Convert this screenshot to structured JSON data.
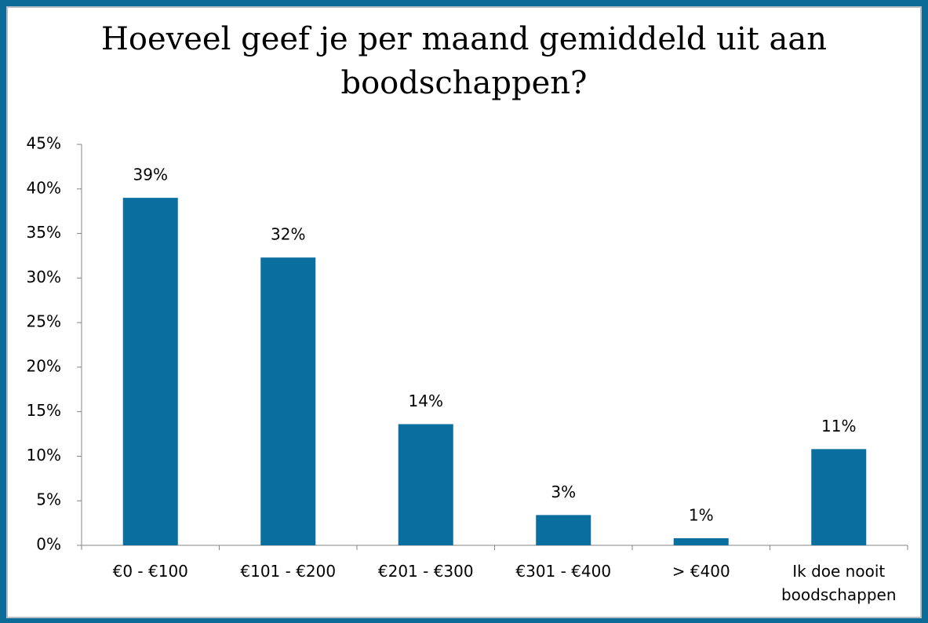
{
  "chart_data": {
    "type": "bar",
    "title": "Hoeveel geef je per maand gemiddeld uit aan boodschappen?",
    "categories": [
      "€0 - €100",
      "€101 - €200",
      "€201 - €300",
      "€301 - €400",
      "> €400",
      "Ik doe nooit boodschappen"
    ],
    "values": [
      39,
      32.3,
      13.6,
      3.4,
      0.8,
      10.8
    ],
    "value_labels": [
      "39%",
      "32%",
      "14%",
      "3%",
      "1%",
      "11%"
    ],
    "color": "#0a6f9e",
    "ylim": [
      0,
      45
    ],
    "yticks": [
      {
        "value": 0,
        "label": "0%"
      },
      {
        "value": 5,
        "label": "5%"
      },
      {
        "value": 10,
        "label": "10%"
      },
      {
        "value": 15,
        "label": "15%"
      },
      {
        "value": 20,
        "label": "20%"
      },
      {
        "value": 25,
        "label": "25%"
      },
      {
        "value": 30,
        "label": "30%"
      },
      {
        "value": 35,
        "label": "35%"
      },
      {
        "value": 40,
        "label": "40%"
      },
      {
        "value": 45,
        "label": "45%"
      }
    ],
    "grid": false
  }
}
